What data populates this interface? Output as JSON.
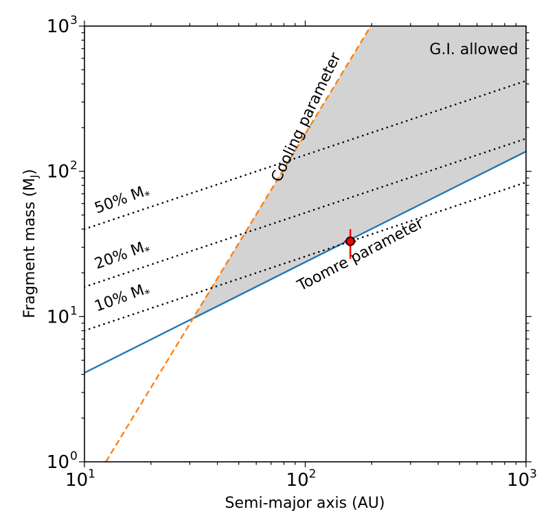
{
  "chart_data": {
    "type": "line",
    "xscale": "log",
    "yscale": "log",
    "xlim": [
      10,
      1000
    ],
    "ylim": [
      1,
      1000
    ],
    "xlabel": "Semi-major axis (AU)",
    "ylabel": "Fragment mass (M",
    "ylabel_sub": "J",
    "ylabel_end": ")",
    "x_ticks": [
      {
        "value": 10,
        "base": "10",
        "exp": "1"
      },
      {
        "value": 100,
        "base": "10",
        "exp": "2"
      },
      {
        "value": 1000,
        "base": "10",
        "exp": "3"
      }
    ],
    "y_ticks": [
      {
        "value": 1,
        "base": "10",
        "exp": "0"
      },
      {
        "value": 10,
        "base": "10",
        "exp": "1"
      },
      {
        "value": 100,
        "base": "10",
        "exp": "2"
      },
      {
        "value": 1000,
        "base": "10",
        "exp": "3"
      }
    ],
    "series": [
      {
        "name": "Toomre parameter",
        "style": "solid",
        "color": "#1f77b4",
        "x": [
          10,
          1000
        ],
        "y": [
          4.1,
          137
        ]
      },
      {
        "name": "Cooling parameter",
        "style": "dashed",
        "color": "#ff7f0e",
        "x": [
          12.5,
          198
        ],
        "y": [
          1,
          1000
        ]
      },
      {
        "name": "50% M*",
        "style": "dotted",
        "color": "#000000",
        "x": [
          10,
          1000
        ],
        "y": [
          40,
          420
        ]
      },
      {
        "name": "20% M*",
        "style": "dotted",
        "color": "#000000",
        "x": [
          10,
          1000
        ],
        "y": [
          16,
          168
        ]
      },
      {
        "name": "10% M*",
        "style": "dotted",
        "color": "#000000",
        "x": [
          10,
          1000
        ],
        "y": [
          8,
          84
        ]
      }
    ],
    "shaded_region": {
      "label": "G.I. allowed",
      "color": "#d3d3d3",
      "x": [
        30.5,
        198,
        1000,
        1000
      ],
      "y": [
        9.4,
        1000,
        1000,
        137
      ]
    },
    "data_point": {
      "x": 160,
      "y": 33,
      "y_err_low": 25,
      "y_err_high": 40,
      "x_err_low": 150,
      "x_err_high": 170,
      "color": "#ff0000"
    },
    "annotations": {
      "region": "G.I. allowed",
      "cooling": "Cooling parameter",
      "toomre": "Toomre parameter",
      "m50": "50% M",
      "m20": "20% M",
      "m10": "10% M",
      "star_sub": "*"
    }
  }
}
